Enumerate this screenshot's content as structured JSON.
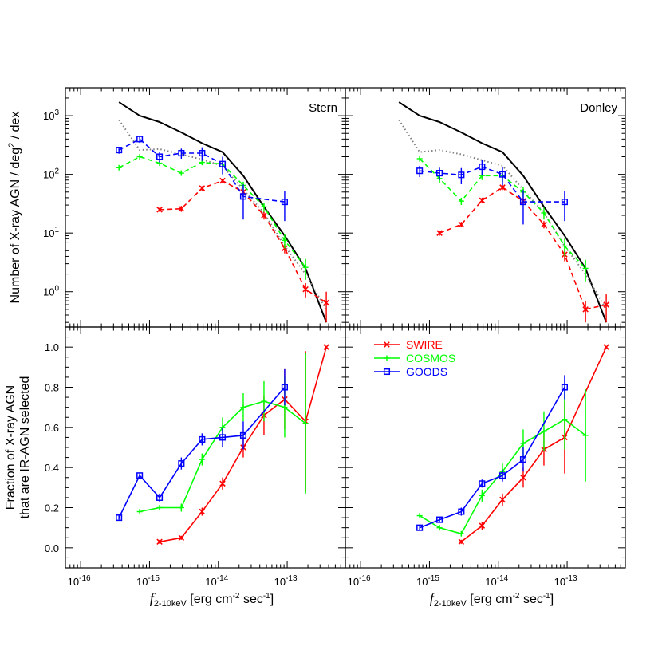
{
  "chart_data": {
    "type": "line",
    "panels": [
      {
        "id": "top-left",
        "label": "Stern",
        "yscale": "log",
        "ylim": [
          0.25,
          3000
        ],
        "ylabel": "Number of X-ray AGN / deg² / dex",
        "xlim": [
          6e-17,
          7e-13
        ],
        "series": [
          {
            "color": "#000000",
            "style": "solid",
            "x": [
              3.6e-16,
              7.2e-16,
              1.4e-15,
              2.9e-15,
              5.8e-15,
              1.15e-14,
              2.3e-14,
              4.6e-14,
              9.2e-14,
              1.85e-13,
              3.7e-13
            ],
            "y": [
              1700,
              1000,
              780,
              520,
              340,
              240,
              95,
              28,
              9,
              2.5,
              0.3
            ]
          },
          {
            "color": "#808080",
            "style": "dotted",
            "x": [
              3.6e-16,
              7.2e-16,
              1.4e-15,
              2.9e-15,
              5.8e-15,
              1.15e-14,
              2.3e-14,
              4.6e-14,
              9.2e-14,
              1.85e-13,
              3.7e-13
            ],
            "y": [
              850,
              260,
              270,
              220,
              180,
              140,
              55,
              22,
              6,
              2,
              0.5
            ]
          },
          {
            "name": "SWIRE",
            "color": "#ff0000",
            "style": "dashed",
            "marker": "x",
            "x": [
              1.4e-15,
              2.9e-15,
              5.8e-15,
              1.15e-14,
              2.3e-14,
              4.6e-14,
              9.2e-14,
              1.85e-13,
              3.7e-13
            ],
            "y": [
              25,
              26,
              58,
              78,
              50,
              20,
              5.5,
              1.1,
              0.65
            ],
            "err": [
              2,
              3,
              5,
              6,
              5,
              3,
              1,
              0.3,
              0.35
            ]
          },
          {
            "name": "COSMOS",
            "color": "#00ff00",
            "style": "dashed",
            "marker": "+",
            "x": [
              3.6e-16,
              7.2e-16,
              1.4e-15,
              2.9e-15,
              5.8e-15,
              1.15e-14,
              2.3e-14,
              4.6e-14,
              9.2e-14,
              1.85e-13
            ],
            "y": [
              130,
              200,
              155,
              105,
              160,
              150,
              65,
              28,
              7.5,
              2.6
            ],
            "err": [
              8,
              12,
              12,
              10,
              15,
              18,
              10,
              5,
              2,
              1
            ]
          },
          {
            "name": "GOODS",
            "color": "#0000ff",
            "style": "dashed",
            "marker": "square",
            "x": [
              3.6e-16,
              7.2e-16,
              1.4e-15,
              2.9e-15,
              5.8e-15,
              1.15e-14,
              2.3e-14,
              9.2e-14
            ],
            "y": [
              260,
              400,
              200,
              230,
              230,
              150,
              42,
              34
            ],
            "err": [
              35,
              55,
              40,
              45,
              60,
              50,
              25,
              18
            ]
          }
        ]
      },
      {
        "id": "top-right",
        "label": "Donley",
        "yscale": "log",
        "ylim": [
          0.25,
          3000
        ],
        "xlim": [
          6e-17,
          7e-13
        ],
        "series": [
          {
            "color": "#000000",
            "style": "solid",
            "x": [
              3.6e-16,
              7.2e-16,
              1.4e-15,
              2.9e-15,
              5.8e-15,
              1.15e-14,
              2.3e-14,
              4.6e-14,
              9.2e-14,
              1.85e-13,
              3.7e-13
            ],
            "y": [
              1700,
              1000,
              780,
              520,
              340,
              240,
              95,
              28,
              9,
              2.5,
              0.3
            ]
          },
          {
            "color": "#808080",
            "style": "dotted",
            "x": [
              3.6e-16,
              7.2e-16,
              1.4e-15,
              2.9e-15,
              5.8e-15,
              1.15e-14,
              2.3e-14,
              4.6e-14,
              9.2e-14,
              1.85e-13,
              3.7e-13
            ],
            "y": [
              850,
              240,
              260,
              220,
              175,
              140,
              55,
              22,
              6,
              2,
              0.5
            ]
          },
          {
            "name": "SWIRE",
            "color": "#ff0000",
            "style": "dashed",
            "marker": "x",
            "x": [
              1.4e-15,
              2.9e-15,
              5.8e-15,
              1.15e-14,
              2.3e-14,
              4.6e-14,
              9.2e-14,
              1.85e-13,
              3.7e-13
            ],
            "y": [
              10,
              14,
              36,
              60,
              35,
              14,
              4.3,
              0.5,
              0.6
            ],
            "err": [
              1,
              1.5,
              4,
              6,
              5,
              2,
              1,
              0.2,
              0.3
            ]
          },
          {
            "name": "COSMOS",
            "color": "#00ff00",
            "style": "dashed",
            "marker": "+",
            "x": [
              7.2e-16,
              1.4e-15,
              2.9e-15,
              5.8e-15,
              1.15e-14,
              2.3e-14,
              4.6e-14,
              9.2e-14,
              1.85e-13
            ],
            "y": [
              185,
              85,
              35,
              95,
              95,
              50,
              22,
              6,
              2.5
            ],
            "err": [
              20,
              15,
              5,
              15,
              20,
              10,
              5,
              2,
              1
            ]
          },
          {
            "name": "GOODS",
            "color": "#0000ff",
            "style": "dashed",
            "marker": "square",
            "x": [
              7.2e-16,
              1.4e-15,
              2.9e-15,
              5.8e-15,
              1.15e-14,
              2.3e-14,
              9.2e-14
            ],
            "y": [
              115,
              105,
              98,
              135,
              100,
              34,
              34
            ],
            "err": [
              25,
              25,
              30,
              40,
              35,
              20,
              18
            ]
          }
        ]
      },
      {
        "id": "bottom-left",
        "yscale": "linear",
        "ylim": [
          -0.1,
          1.1
        ],
        "ylabel_lines": [
          "Fraction of X-ray AGN",
          "that are IR-AGN selected"
        ],
        "xlabel_italic": "f",
        "xlabel_sub": "2-10keV",
        "xlabel_rest": " [erg cm",
        "xlabel_sup": "-2",
        "xlabel_rest2": " sec",
        "xlabel_sup2": "-1",
        "xlabel_end": "]",
        "xlim": [
          6e-17,
          7e-13
        ],
        "series": [
          {
            "name": "SWIRE",
            "color": "#ff0000",
            "style": "solid",
            "marker": "x",
            "x": [
              1.4e-15,
              2.9e-15,
              5.8e-15,
              1.15e-14,
              2.3e-14,
              4.6e-14,
              9.2e-14,
              1.85e-13,
              3.7e-13
            ],
            "y": [
              0.03,
              0.05,
              0.18,
              0.32,
              0.5,
              0.66,
              0.74,
              0.63,
              1.0
            ],
            "err": [
              0.01,
              0.01,
              0.02,
              0.03,
              0.05,
              0.1,
              0.15,
              0.35,
              0.0
            ]
          },
          {
            "name": "COSMOS",
            "color": "#00ff00",
            "style": "solid",
            "marker": "+",
            "x": [
              7.2e-16,
              1.4e-15,
              2.9e-15,
              5.8e-15,
              1.15e-14,
              2.3e-14,
              4.6e-14,
              9.2e-14,
              1.85e-13
            ],
            "y": [
              0.18,
              0.2,
              0.2,
              0.44,
              0.6,
              0.7,
              0.73,
              0.7,
              0.62
            ],
            "err": [
              0.01,
              0.01,
              0.02,
              0.03,
              0.05,
              0.07,
              0.1,
              0.15,
              0.35
            ]
          },
          {
            "name": "GOODS",
            "color": "#0000ff",
            "style": "solid",
            "marker": "square",
            "x": [
              3.6e-16,
              7.2e-16,
              1.4e-15,
              2.9e-15,
              5.8e-15,
              1.15e-14,
              2.3e-14,
              9.2e-14
            ],
            "y": [
              0.15,
              0.36,
              0.25,
              0.42,
              0.54,
              0.55,
              0.56,
              0.8
            ],
            "err": [
              0.01,
              0.01,
              0.02,
              0.03,
              0.03,
              0.05,
              0.07,
              0.09
            ]
          }
        ]
      },
      {
        "id": "bottom-right",
        "yscale": "linear",
        "ylim": [
          -0.1,
          1.1
        ],
        "xlim": [
          6e-17,
          7e-13
        ],
        "series": [
          {
            "name": "SWIRE",
            "color": "#ff0000",
            "style": "solid",
            "marker": "x",
            "x": [
              2.9e-15,
              5.8e-15,
              1.15e-14,
              2.3e-14,
              4.6e-14,
              9.2e-14,
              3.7e-13
            ],
            "y": [
              0.03,
              0.11,
              0.24,
              0.35,
              0.49,
              0.55,
              1.0
            ],
            "err": [
              0.01,
              0.02,
              0.03,
              0.05,
              0.08,
              0.18,
              0.0
            ]
          },
          {
            "name": "COSMOS",
            "color": "#00ff00",
            "style": "solid",
            "marker": "+",
            "x": [
              7.2e-16,
              1.4e-15,
              2.9e-15,
              5.8e-15,
              1.15e-14,
              2.3e-14,
              4.6e-14,
              9.2e-14,
              1.85e-13
            ],
            "y": [
              0.16,
              0.1,
              0.07,
              0.26,
              0.38,
              0.52,
              0.58,
              0.64,
              0.56
            ],
            "err": [
              0.01,
              0.01,
              0.01,
              0.03,
              0.04,
              0.07,
              0.1,
              0.15,
              0.23
            ]
          },
          {
            "name": "GOODS",
            "color": "#0000ff",
            "style": "solid",
            "marker": "square",
            "x": [
              7.2e-16,
              1.4e-15,
              2.9e-15,
              5.8e-15,
              1.15e-14,
              2.3e-14,
              9.2e-14
            ],
            "y": [
              0.1,
              0.14,
              0.18,
              0.32,
              0.36,
              0.44,
              0.8
            ],
            "err": [
              0.01,
              0.01,
              0.02,
              0.02,
              0.03,
              0.06,
              0.06
            ]
          }
        ]
      }
    ],
    "xscale": "log",
    "x_ticks": [
      1e-16,
      1e-15,
      1e-14,
      1e-13
    ],
    "x_tick_labels": [
      {
        "base": "10",
        "exp": "-16"
      },
      {
        "base": "10",
        "exp": "-15"
      },
      {
        "base": "10",
        "exp": "-14"
      },
      {
        "base": "10",
        "exp": "-13"
      }
    ],
    "top_y_ticks": [
      1,
      10,
      100,
      1000
    ],
    "top_y_tick_labels": [
      {
        "base": "10",
        "exp": "0"
      },
      {
        "base": "10",
        "exp": "1"
      },
      {
        "base": "10",
        "exp": "2"
      },
      {
        "base": "10",
        "exp": "3"
      }
    ],
    "bottom_y_ticks": [
      0.0,
      0.2,
      0.4,
      0.6,
      0.8,
      1.0
    ],
    "bottom_y_tick_labels": [
      "0.0",
      "0.2",
      "0.4",
      "0.6",
      "0.8",
      "1.0"
    ],
    "legend": {
      "placement": "top-left of bottom-right panel",
      "entries": [
        {
          "name": "SWIRE",
          "color": "#ff0000",
          "marker": "x"
        },
        {
          "name": "COSMOS",
          "color": "#00ff00",
          "marker": "+"
        },
        {
          "name": "GOODS",
          "color": "#0000ff",
          "marker": "square"
        }
      ]
    }
  }
}
